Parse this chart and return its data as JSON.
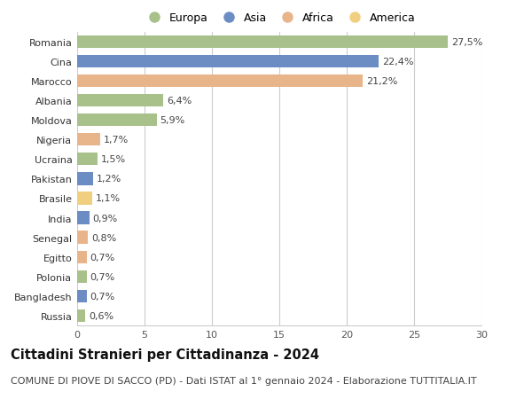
{
  "countries": [
    "Romania",
    "Cina",
    "Marocco",
    "Albania",
    "Moldova",
    "Nigeria",
    "Ucraina",
    "Pakistan",
    "Brasile",
    "India",
    "Senegal",
    "Egitto",
    "Polonia",
    "Bangladesh",
    "Russia"
  ],
  "values": [
    27.5,
    22.4,
    21.2,
    6.4,
    5.9,
    1.7,
    1.5,
    1.2,
    1.1,
    0.9,
    0.8,
    0.7,
    0.7,
    0.7,
    0.6
  ],
  "labels": [
    "27,5%",
    "22,4%",
    "21,2%",
    "6,4%",
    "5,9%",
    "1,7%",
    "1,5%",
    "1,2%",
    "1,1%",
    "0,9%",
    "0,8%",
    "0,7%",
    "0,7%",
    "0,7%",
    "0,6%"
  ],
  "continents": [
    "Europa",
    "Asia",
    "Africa",
    "Europa",
    "Europa",
    "Africa",
    "Europa",
    "Asia",
    "America",
    "Asia",
    "Africa",
    "Africa",
    "Europa",
    "Asia",
    "Europa"
  ],
  "colors": {
    "Europa": "#a8c08a",
    "Asia": "#6b8dc4",
    "Africa": "#e8b48a",
    "America": "#f0d080"
  },
  "legend_order": [
    "Europa",
    "Asia",
    "Africa",
    "America"
  ],
  "xlim": [
    0,
    30
  ],
  "xticks": [
    0,
    5,
    10,
    15,
    20,
    25,
    30
  ],
  "title": "Cittadini Stranieri per Cittadinanza - 2024",
  "subtitle": "COMUNE DI PIOVE DI SACCO (PD) - Dati ISTAT al 1° gennaio 2024 - Elaborazione TUTTITALIA.IT",
  "background_color": "#ffffff",
  "grid_color": "#cccccc",
  "bar_height": 0.65,
  "title_fontsize": 10.5,
  "subtitle_fontsize": 8,
  "label_fontsize": 8,
  "tick_fontsize": 8,
  "legend_fontsize": 9
}
